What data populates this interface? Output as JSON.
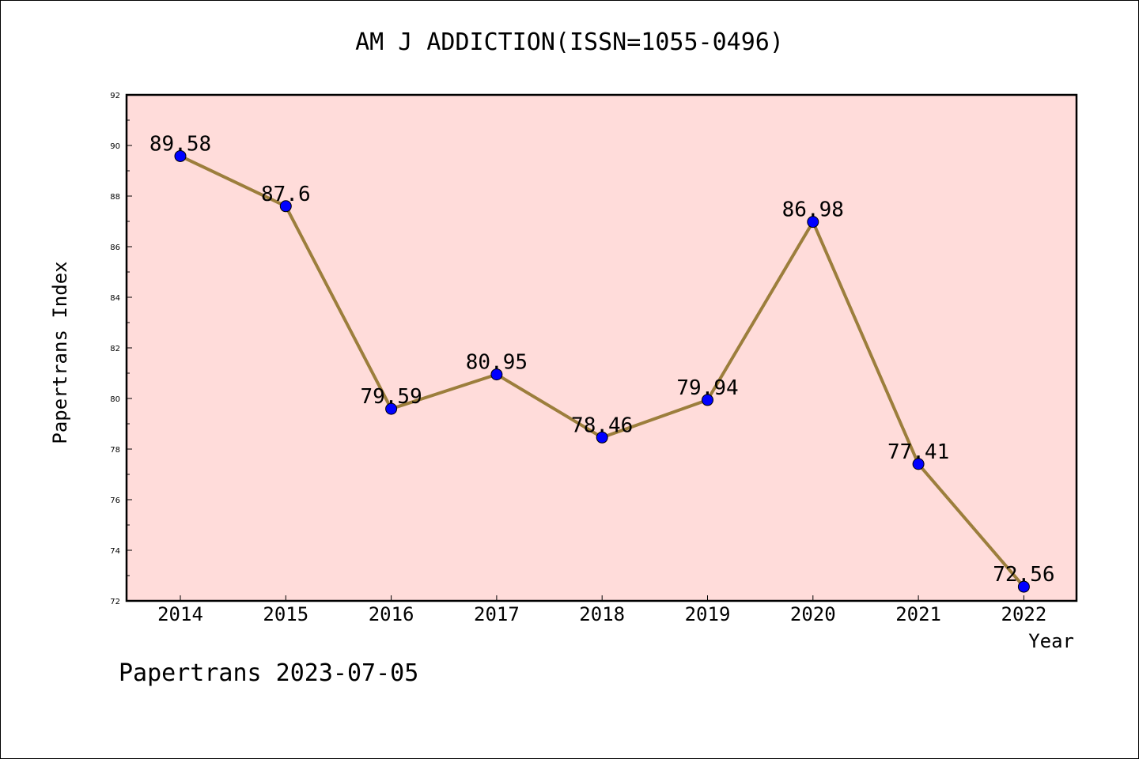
{
  "title": "AM J ADDICTION(ISSN=1055-0496)",
  "footer": "Papertrans 2023-07-05",
  "colors": {
    "plot_background": "#FFDCDA",
    "line": "#9C7E3C",
    "marker": "#0000FF",
    "axis": "#000000"
  },
  "chart_data": {
    "type": "line",
    "title": "AM J ADDICTION(ISSN=1055-0496)",
    "xlabel": "Year",
    "ylabel": "Papertrans Index",
    "categories": [
      "2014",
      "2015",
      "2016",
      "2017",
      "2018",
      "2019",
      "2020",
      "2021",
      "2022"
    ],
    "series": [
      {
        "values": [
          89.58,
          87.6,
          79.59,
          80.95,
          78.46,
          79.94,
          86.98,
          77.41,
          72.56
        ],
        "data_labels": [
          "89.58",
          "87.6",
          "79.59",
          "80.95",
          "78.46",
          "79.94",
          "86.98",
          "77.41",
          "72.56"
        ]
      }
    ],
    "ylim": [
      72,
      92
    ],
    "yticks": [
      72,
      74,
      76,
      78,
      80,
      82,
      84,
      86,
      88,
      90,
      92
    ],
    "grid": false,
    "legend": "none"
  }
}
